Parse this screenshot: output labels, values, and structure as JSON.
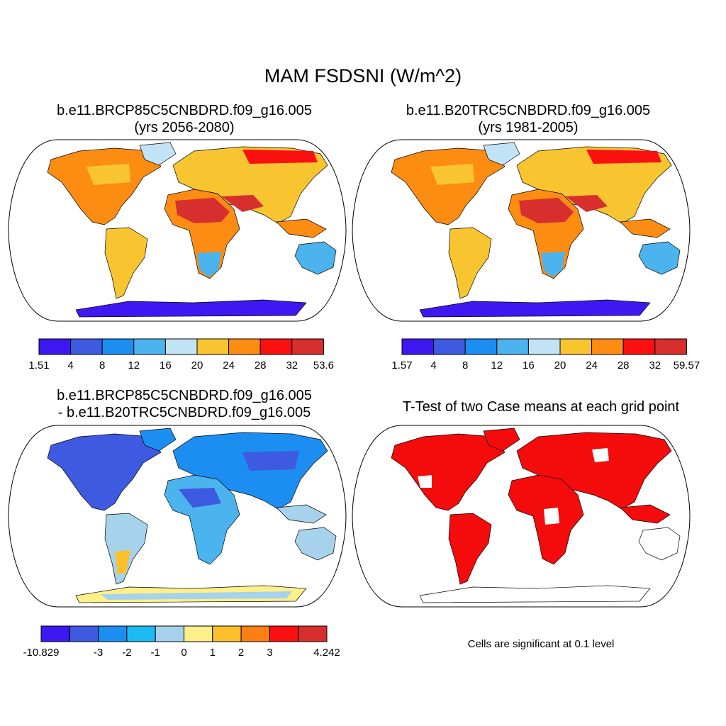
{
  "title": "MAM FSDSNI (W/m^2)",
  "panels": [
    {
      "id": "a",
      "line1": "b.e11.BRCP85C5CNBDRD.f09_g16.005",
      "line2": "(yrs 2056-2080)",
      "palette": "abs",
      "colorbar": {
        "colors": [
          "#3d18f0",
          "#3d5ae0",
          "#1c8ef2",
          "#4bb3ee",
          "#c2e3f5",
          "#f8c531",
          "#fd8c13",
          "#fb1010",
          "#d72e2e"
        ],
        "labels": [
          "1.51",
          "4",
          "8",
          "12",
          "16",
          "20",
          "24",
          "28",
          "32",
          "53.6"
        ]
      }
    },
    {
      "id": "b",
      "line1": "b.e11.B20TRC5CNBDRD.f09_g16.005",
      "line2": "(yrs 1981-2005)",
      "palette": "abs",
      "colorbar": {
        "colors": [
          "#3d18f0",
          "#3d5ae0",
          "#1c8ef2",
          "#4bb3ee",
          "#c2e3f5",
          "#f8c531",
          "#fd8c13",
          "#fb1010",
          "#d72e2e"
        ],
        "labels": [
          "1.57",
          "4",
          "8",
          "12",
          "16",
          "20",
          "24",
          "28",
          "32",
          "59.57"
        ]
      }
    },
    {
      "id": "c",
      "line1": "b.e11.BRCP85C5CNBDRD.f09_g16.005",
      "line2": "- b.e11.B20TRC5CNBDRD.f09_g16.005",
      "palette": "diff",
      "colorbar": {
        "colors": [
          "#3d18f0",
          "#3d5ae0",
          "#1c8ef2",
          "#1cbaf2",
          "#a6d2ec",
          "#fdf08a",
          "#fbc02c",
          "#fd7f13",
          "#fb1010",
          "#d72e2e"
        ],
        "labels": [
          "-10.829",
          "",
          "-3",
          "-2",
          "-1",
          "0",
          "1",
          "2",
          "3",
          "",
          "4.242"
        ]
      }
    },
    {
      "id": "d",
      "line1": "T-Test of two Case means at each grid point",
      "line2": "",
      "palette": "sig",
      "note": "Cells are significant at 0.1 level"
    }
  ],
  "colors": {
    "significant": "#f40b0b",
    "antarctica_abs_outer": "#3d18f0",
    "antarctica_abs_inner": "#3d5ae0",
    "antarctica_diff_outer": "#fdf08a",
    "antarctica_diff_inner": "#a6d2ec"
  }
}
